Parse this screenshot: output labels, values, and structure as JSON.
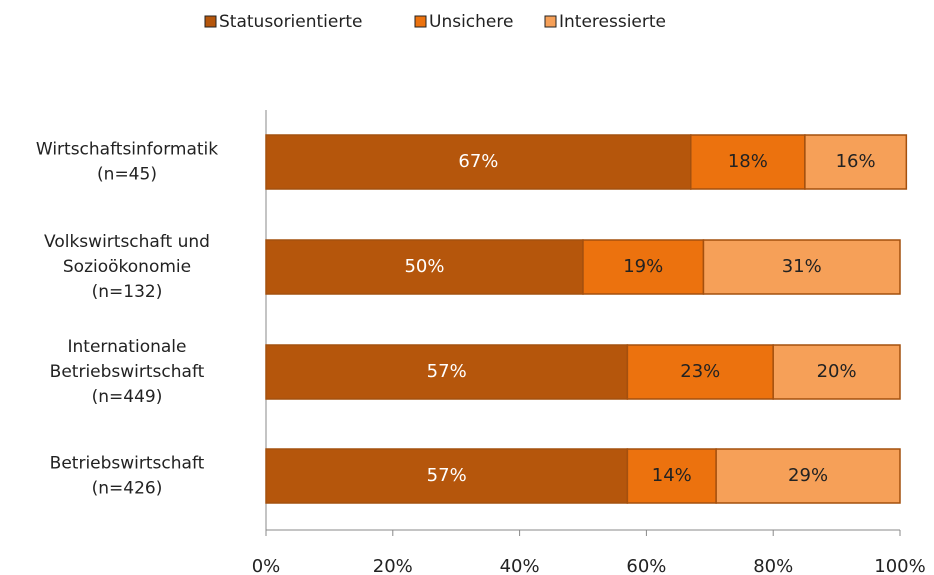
{
  "chart_data": {
    "type": "stacked_barh",
    "categories": [
      [
        "Wirtschaftsinformatik",
        "(n=45)"
      ],
      [
        "Volkswirtschaft und",
        "Sozioökonomie",
        "(n=132)"
      ],
      [
        "Internationale",
        "Betriebswirtschaft",
        "(n=449)"
      ],
      [
        "Betriebswirtschaft",
        "(n=426)"
      ]
    ],
    "series": [
      {
        "name": "Statusorientierte",
        "color": "#b5560c",
        "label_color": "#ffffff",
        "values": [
          67,
          50,
          57,
          57
        ],
        "value_labels": [
          "67%",
          "50%",
          "57%",
          "57%"
        ]
      },
      {
        "name": "Unsichere",
        "color": "#ec720e",
        "label_color": "#222222",
        "values": [
          18,
          19,
          23,
          14
        ],
        "value_labels": [
          "18%",
          "19%",
          "23%",
          "14%"
        ]
      },
      {
        "name": "Interessierte",
        "color": "#f6a058",
        "label_color": "#222222",
        "values": [
          16,
          31,
          20,
          29
        ],
        "value_labels": [
          "16%",
          "31%",
          "20%",
          "29%"
        ]
      }
    ],
    "xlim": [
      0,
      100
    ],
    "xticks": [
      {
        "value": 0,
        "label": "0%"
      },
      {
        "value": 20,
        "label": "20%"
      },
      {
        "value": 40,
        "label": "40%"
      },
      {
        "value": 60,
        "label": "60%"
      },
      {
        "value": 80,
        "label": "80%"
      },
      {
        "value": 100,
        "label": "100%"
      }
    ],
    "legend": "top"
  }
}
